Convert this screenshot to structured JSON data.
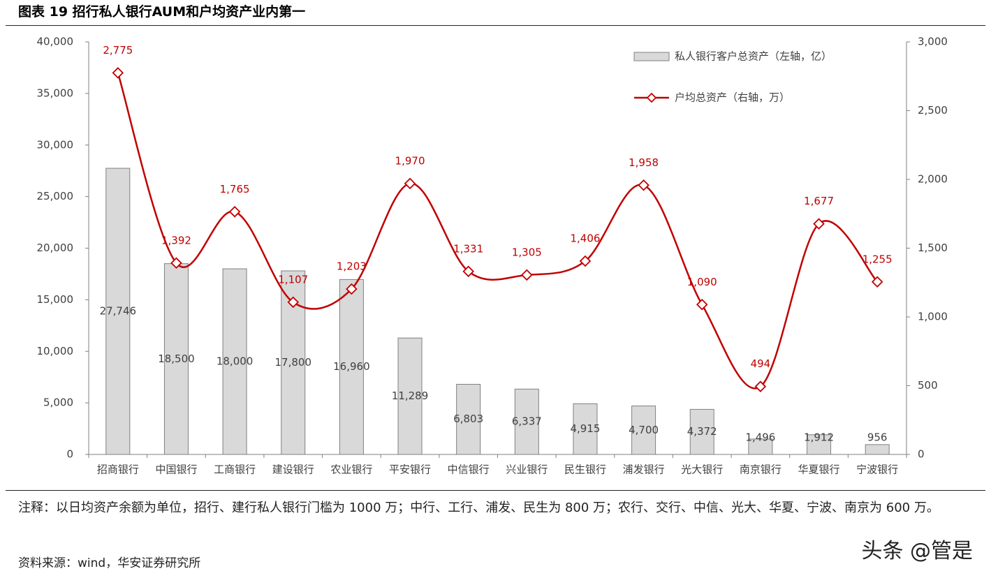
{
  "chart_data": {
    "type": "bar-line",
    "title": "图表 19 招行私人银行AUM和户均资产业内第一",
    "categories": [
      "招商银行",
      "中国银行",
      "工商银行",
      "建设银行",
      "农业银行",
      "平安银行",
      "中信银行",
      "兴业银行",
      "民生银行",
      "浦发银行",
      "光大银行",
      "南京银行",
      "华夏银行",
      "宁波银行"
    ],
    "series": [
      {
        "name": "私人银行客户总资产（左轴，亿）",
        "type": "bar",
        "color": "#d9d9d9",
        "values": [
          27746,
          18500,
          18000,
          17800,
          16960,
          11289,
          6803,
          6337,
          4915,
          4700,
          4372,
          1496,
          1912,
          956
        ],
        "value_labels": [
          "27,746",
          "18,500",
          "18,000",
          "17,800",
          "16,960",
          "11,289",
          "6,803",
          "6,337",
          "4,915",
          "4,700",
          "4,372",
          "1,496",
          "1,912",
          "956"
        ]
      },
      {
        "name": "户均总资产（右轴，万）",
        "type": "line",
        "axis": "y2",
        "color": "#c00000",
        "values": [
          2775,
          1392,
          1765,
          1107,
          1203,
          1970,
          1331,
          1305,
          1406,
          1958,
          1090,
          494,
          1677,
          1255
        ],
        "value_labels": [
          "2,775",
          "1,392",
          "1,765",
          "1,107",
          "1,203",
          "1,970",
          "1,331",
          "1,305",
          "1,406",
          "1,958",
          "1,090",
          "494",
          "1,677",
          "1,255"
        ]
      }
    ],
    "ylim": [
      0,
      40000
    ],
    "yticks": [
      0,
      {
        "value": 5000,
        "label": "5,000"
      },
      {
        "value": 10000,
        "label": "10,000"
      },
      {
        "value": 15000,
        "label": "15,000"
      },
      {
        "value": 20000,
        "label": "20,000"
      },
      {
        "value": 25000,
        "label": "25,000"
      },
      {
        "value": 30000,
        "label": "30,000"
      },
      {
        "value": 35000,
        "label": "35,000"
      },
      {
        "value": 40000,
        "label": "40,000"
      }
    ],
    "y2lim": [
      0,
      3000
    ],
    "y2ticks": [
      0,
      500,
      {
        "value": 1000,
        "label": "1,000"
      },
      {
        "value": 1500,
        "label": "1,500"
      },
      {
        "value": 2000,
        "label": "2,000"
      },
      {
        "value": 2500,
        "label": "2,500"
      },
      {
        "value": 3000,
        "label": "3,000"
      }
    ],
    "note": "注释：以日均资产余额为单位，招行、建行私人银行门槛为 1000 万；中行、工行、浦发、民生为 800 万；农行、交行、中信、光大、华夏、宁波、南京为 600 万。",
    "source": "资料来源：wind，华安证券研究所",
    "watermark": "头条 @管是"
  }
}
